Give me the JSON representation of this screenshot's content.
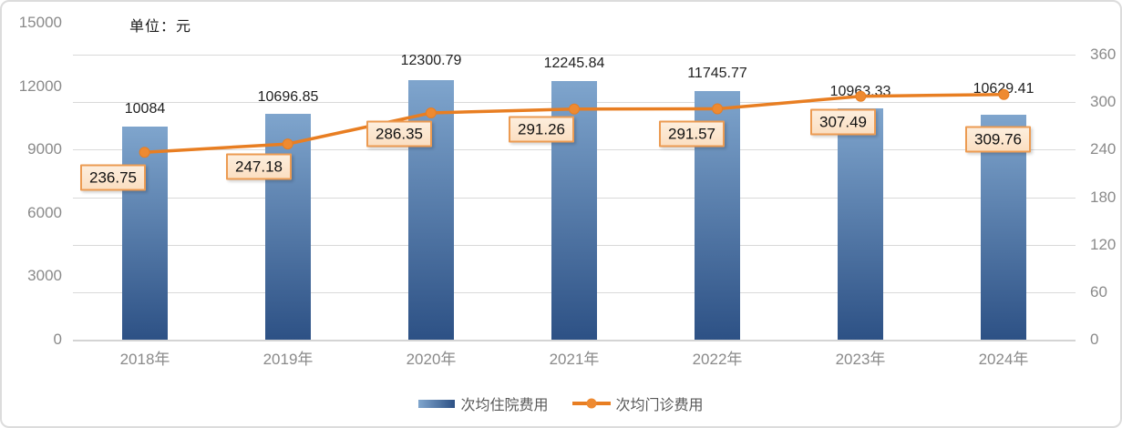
{
  "unit_label": "单位：元",
  "chart_data": {
    "type": "combo",
    "categories": [
      "2018年",
      "2019年",
      "2020年",
      "2021年",
      "2022年",
      "2023年",
      "2024年"
    ],
    "series": [
      {
        "name": "次均住院费用",
        "type": "bar",
        "axis": "left",
        "values": [
          10084,
          10696.85,
          12300.79,
          12245.84,
          11745.77,
          10963.33,
          10629.41
        ],
        "labels": [
          "10084",
          "10696.85",
          "12300.79",
          "12245.84",
          "11745.77",
          "10963.33",
          "10629.41"
        ]
      },
      {
        "name": "次均门诊费用",
        "type": "line",
        "axis": "right",
        "values": [
          236.75,
          247.18,
          286.35,
          291.26,
          291.57,
          307.49,
          309.76
        ],
        "labels": [
          "236.75",
          "247.18",
          "286.35",
          "291.26",
          "291.57",
          "307.49",
          "309.76"
        ]
      }
    ],
    "left_axis": {
      "min": 0,
      "max": 15000,
      "ticks": [
        0,
        3000,
        6000,
        9000,
        12000,
        15000
      ]
    },
    "right_axis": {
      "min": 0,
      "max": 360,
      "ticks": [
        0,
        60,
        120,
        180,
        240,
        300,
        360
      ]
    },
    "grid": true,
    "legend_position": "bottom"
  },
  "colors": {
    "bar_top": "#7fa5cd",
    "bar_bottom": "#2d5185",
    "line": "#e87e22",
    "marker": "#ee8a31",
    "label_box_fill": "#fce7d1",
    "label_box_border": "#ec9b52",
    "axis_text": "#8a8a8a",
    "grid": "#d9d9d9",
    "legend_text": "#595959",
    "value_text": "#1f1f1f"
  }
}
